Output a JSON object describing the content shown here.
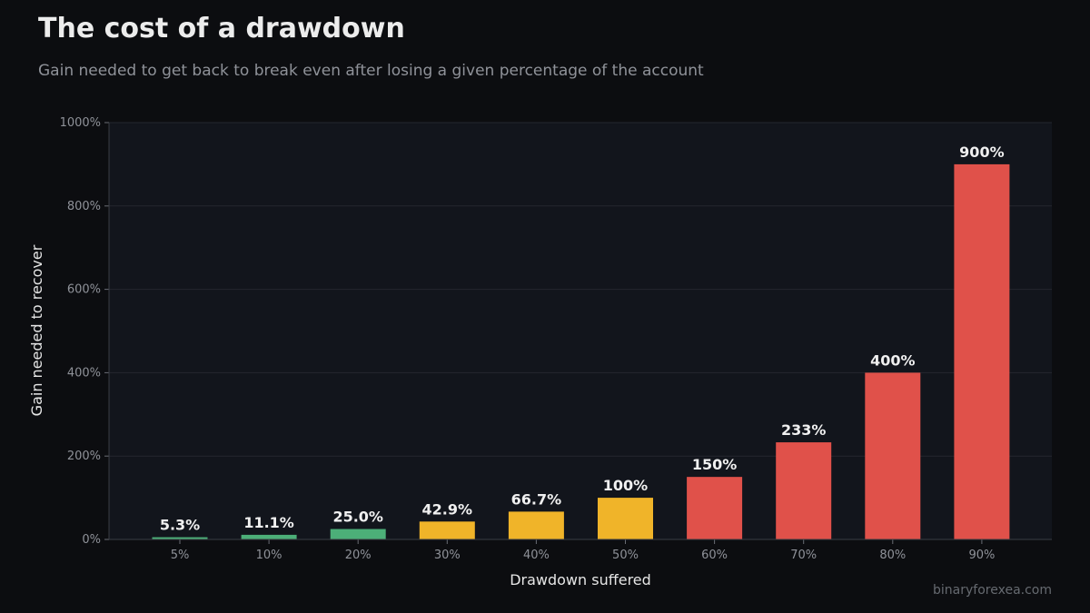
{
  "title": "The cost of a drawdown",
  "subtitle": "Gain needed to get back to break even after losing a given percentage of the account",
  "credit": "binaryforexea.com",
  "colors": {
    "background": "#0c0d10",
    "plot_background": "#12151c",
    "grid": "#24272e",
    "green": "#4caf78",
    "amber": "#f0b429",
    "red": "#e0514a"
  },
  "chart_data": {
    "type": "bar",
    "title": "The cost of a drawdown",
    "subtitle": "Gain needed to get back to break even after losing a given percentage of the account",
    "xlabel": "Drawdown suffered",
    "ylabel": "Gain needed to recover",
    "categories": [
      "5%",
      "10%",
      "20%",
      "30%",
      "40%",
      "50%",
      "60%",
      "70%",
      "80%",
      "90%"
    ],
    "values": [
      5.3,
      11.1,
      25.0,
      42.9,
      66.7,
      100,
      150,
      233,
      400,
      900
    ],
    "data_labels": [
      "5.3%",
      "11.1%",
      "25.0%",
      "42.9%",
      "66.7%",
      "100%",
      "150%",
      "233%",
      "400%",
      "900%"
    ],
    "bar_colors": [
      "green",
      "green",
      "green",
      "amber",
      "amber",
      "amber",
      "red",
      "red",
      "red",
      "red"
    ],
    "ylim": [
      0,
      1000
    ],
    "yticks": [
      0,
      200,
      400,
      600,
      800,
      1000
    ],
    "ytick_labels": [
      "0%",
      "200%",
      "400%",
      "600%",
      "800%",
      "1000%"
    ],
    "grid": true
  }
}
